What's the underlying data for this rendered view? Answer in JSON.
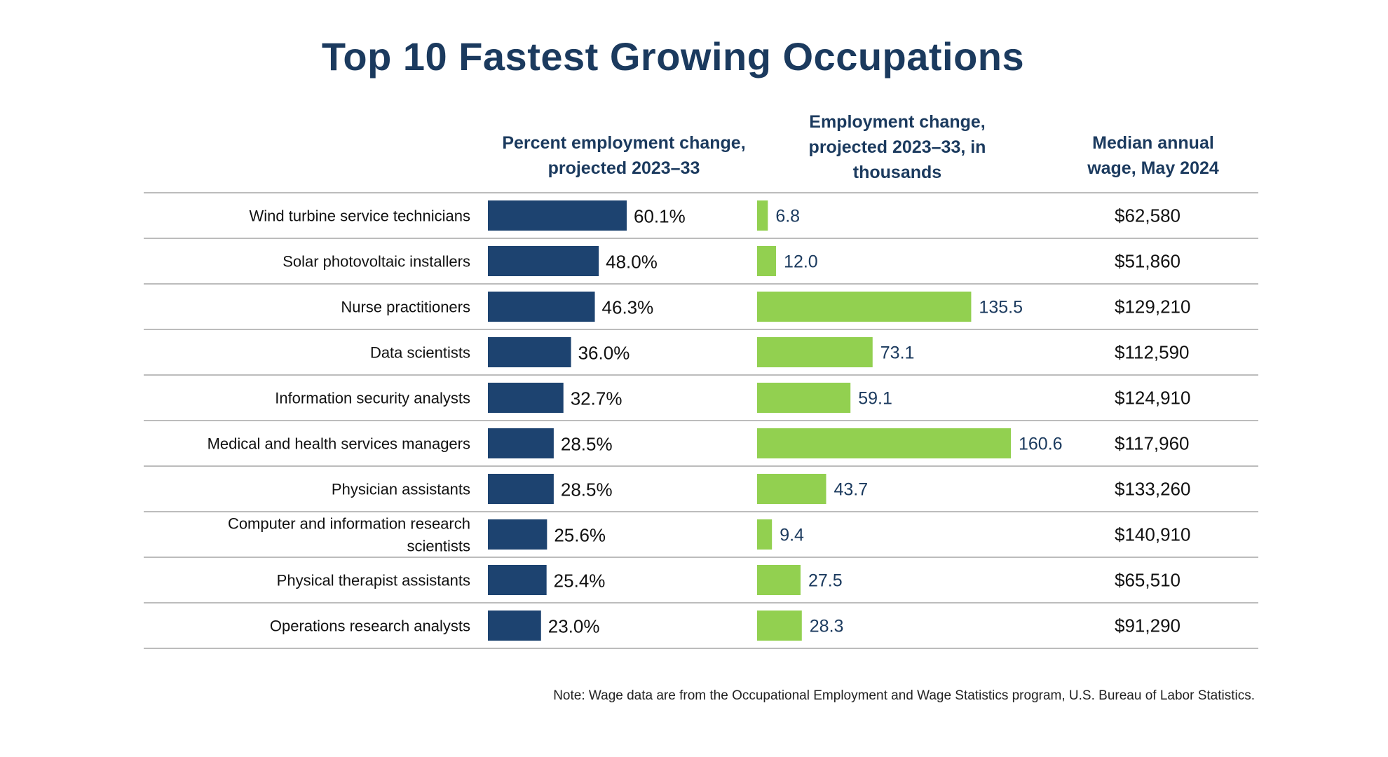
{
  "chart_data": {
    "type": "bar",
    "title": "Top 10 Fastest Growing Occupations",
    "columns": {
      "occupation": "",
      "percent": "Percent employment change, projected 2023–33",
      "employment": "Employment change, projected 2023–33, in thousands",
      "wage": "Median annual wage, May 2024"
    },
    "categories": [
      [
        "Wind turbine service technicians"
      ],
      [
        "Solar photovoltaic installers"
      ],
      [
        "Nurse practitioners"
      ],
      [
        "Data scientists"
      ],
      [
        "Information security analysts"
      ],
      [
        "Medical and health services managers"
      ],
      [
        "Physician assistants"
      ],
      [
        "Computer and information research",
        "scientists"
      ],
      [
        "Physical therapist assistants"
      ],
      [
        "Operations research analysts"
      ]
    ],
    "series": [
      {
        "name": "Percent employment change, projected 2023–33",
        "values": [
          60.1,
          48.0,
          46.3,
          36.0,
          32.7,
          28.5,
          28.5,
          25.6,
          25.4,
          23.0
        ],
        "labels": [
          "60.1%",
          "48.0%",
          "46.3%",
          "36.0%",
          "32.7%",
          "28.5%",
          "28.5%",
          "25.6%",
          "25.4%",
          "23.0%"
        ],
        "color": "#1d4370"
      },
      {
        "name": "Employment change, projected 2023–33, in thousands",
        "values": [
          6.8,
          12.0,
          135.5,
          73.1,
          59.1,
          160.6,
          43.7,
          9.4,
          27.5,
          28.3
        ],
        "labels": [
          "6.8",
          "12.0",
          "135.5",
          "73.1",
          "59.1",
          "160.6",
          "43.7",
          "9.4",
          "27.5",
          "28.3"
        ],
        "color": "#92d050"
      }
    ],
    "wages": [
      "$62,580",
      "$51,860",
      "$129,210",
      "$112,590",
      "$124,910",
      "$117,960",
      "$133,260",
      "$140,910",
      "$65,510",
      "$91,290"
    ],
    "note": "Note: Wage data are from the Occupational Employment and Wage Statistics program, U.S. Bureau of Labor Statistics.",
    "colors": {
      "title": "#1b3a5e",
      "percent_bar": "#1d4370",
      "employment_bar": "#92d050",
      "value_label": "#1b3a5e",
      "divider": "#a6a6a6"
    }
  }
}
